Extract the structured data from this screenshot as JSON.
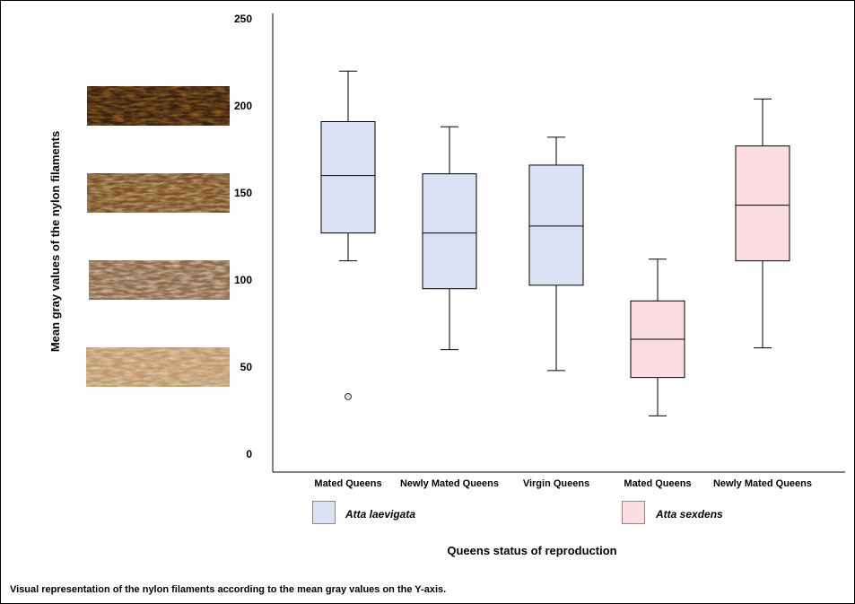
{
  "chart_data": {
    "type": "boxplot",
    "ylabel": "Mean gray values of the nylon filaments",
    "xlabel": "Queens status of reproduction",
    "ylim": [
      0,
      250
    ],
    "yticks": [
      0,
      50,
      100,
      150,
      200,
      250
    ],
    "grid": false,
    "legend_position": "bottom",
    "series": [
      {
        "name": "Atta laevigata",
        "color": "#d9e3f4"
      },
      {
        "name": "Atta sexdens",
        "color": "#fcdde1"
      }
    ],
    "boxes": [
      {
        "category": "Mated Queens",
        "series": "Atta laevigata",
        "min": 111,
        "q1": 127,
        "median": 160,
        "q3": 191,
        "max": 220,
        "outliers": [
          33
        ]
      },
      {
        "category": "Newly Mated Queens",
        "series": "Atta laevigata",
        "min": 60,
        "q1": 95,
        "median": 127,
        "q3": 161,
        "max": 188,
        "outliers": []
      },
      {
        "category": "Virgin Queens",
        "series": "Atta laevigata",
        "min": 48,
        "q1": 97,
        "median": 131,
        "q3": 166,
        "max": 182,
        "outliers": []
      },
      {
        "category": "Mated Queens",
        "series": "Atta sexdens",
        "min": 22,
        "q1": 44,
        "median": 66,
        "q3": 88,
        "max": 112,
        "outliers": []
      },
      {
        "category": "Newly Mated Queens",
        "series": "Atta sexdens",
        "min": 61,
        "q1": 111,
        "median": 143,
        "q3": 177,
        "max": 204,
        "outliers": []
      }
    ],
    "filament_swatches": [
      {
        "level": 200,
        "tone": "dark"
      },
      {
        "level": 150,
        "tone": "medium-dark"
      },
      {
        "level": 100,
        "tone": "medium-light"
      },
      {
        "level": 50,
        "tone": "light"
      }
    ]
  },
  "caption": "Visual representation of the nylon filaments according to the mean gray values on the Y-axis."
}
